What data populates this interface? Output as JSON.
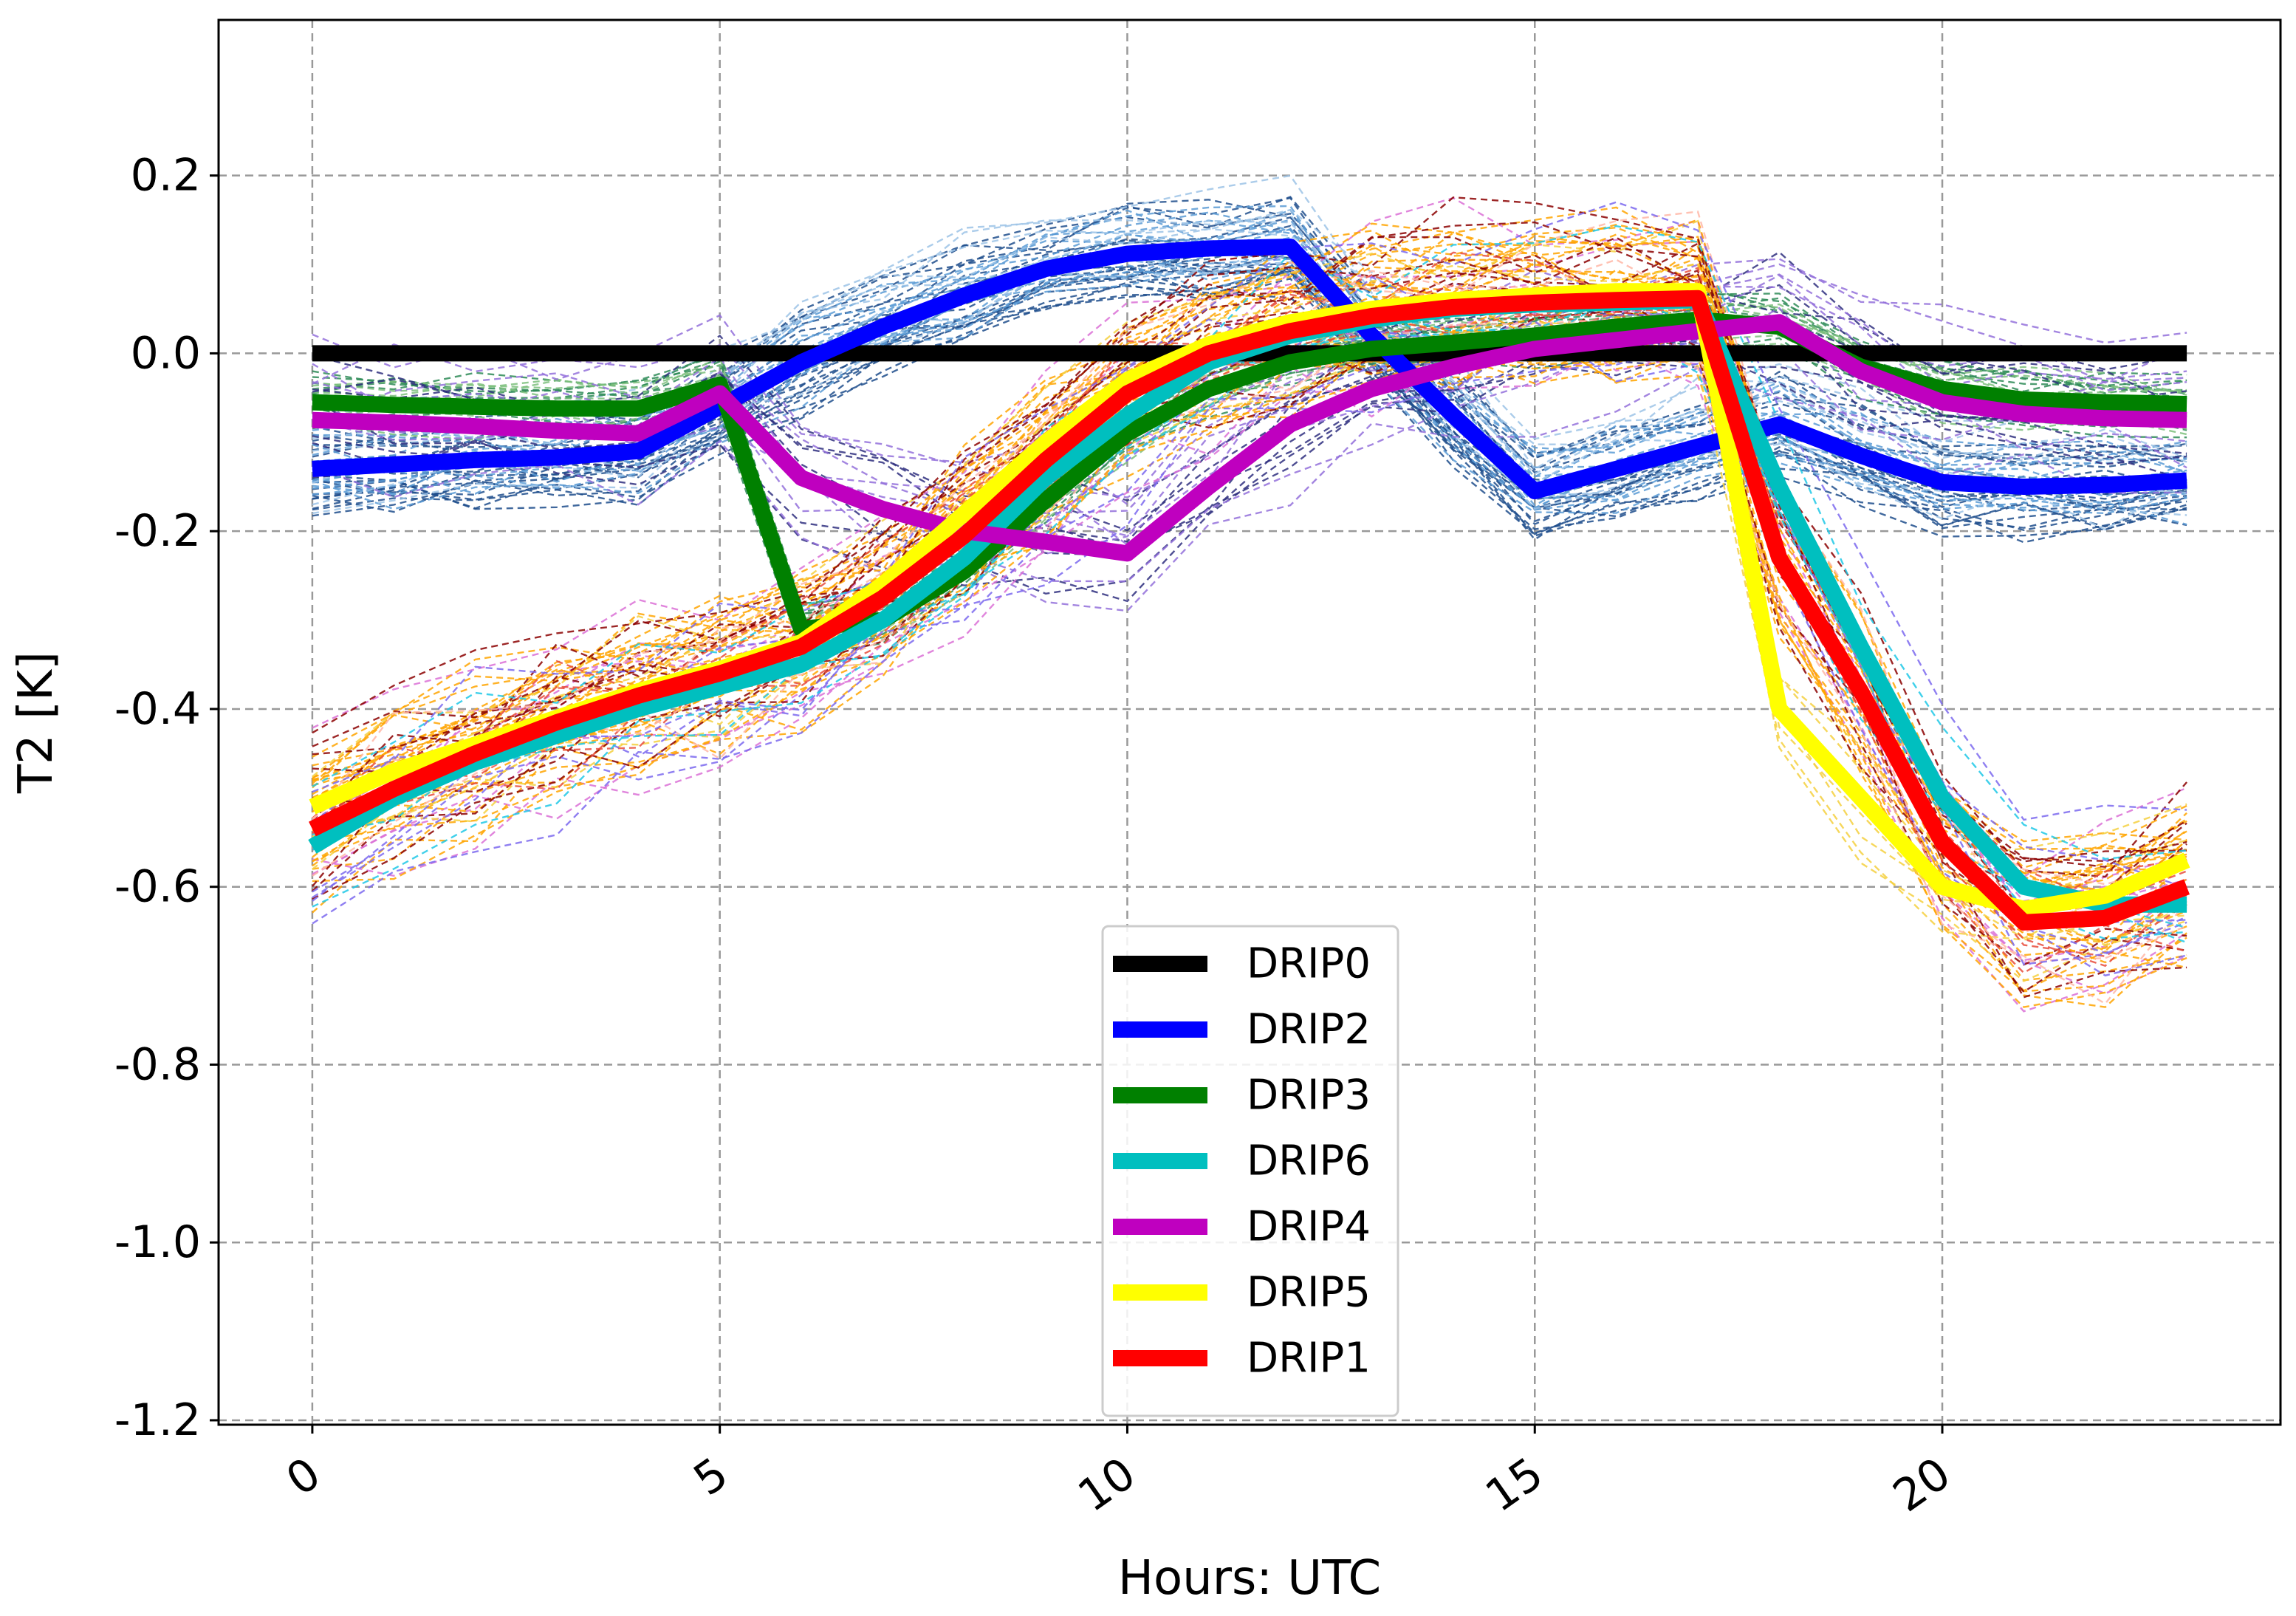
{
  "chart_data": {
    "type": "line",
    "title": "",
    "xlabel": "Hours: UTC",
    "ylabel": "T2 [K]",
    "xlim": [
      -1.15,
      24.15
    ],
    "ylim": [
      -1.205,
      0.375
    ],
    "xticks": [
      0,
      5,
      10,
      15,
      20
    ],
    "xtick_labels": [
      "0",
      "5",
      "10",
      "15",
      "20"
    ],
    "yticks": [
      0.2,
      0.0,
      -0.2,
      -0.4,
      -0.6,
      -0.8,
      -1.0,
      -1.2
    ],
    "ytick_labels": [
      "0.2",
      "0.0",
      "-0.2",
      "-0.4",
      "-0.6",
      "-0.8",
      "-1.0",
      "-1.2"
    ],
    "grid": true,
    "legend_position": "lower-center",
    "hours": [
      0,
      1,
      2,
      3,
      4,
      5,
      6,
      7,
      8,
      9,
      10,
      11,
      12,
      13,
      14,
      15,
      16,
      17,
      18,
      19,
      20,
      21,
      22,
      23
    ],
    "series": [
      {
        "name": "DRIP0",
        "color": "#000000",
        "values": [
          0.0,
          0.0,
          0.0,
          0.0,
          0.0,
          0.0,
          0.0,
          0.0,
          0.0,
          0.0,
          0.0,
          0.0,
          0.0,
          0.0,
          0.0,
          0.0,
          0.0,
          0.0,
          0.0,
          0.0,
          0.0,
          0.0,
          0.0,
          0.0
        ]
      },
      {
        "name": "DRIP2",
        "color": "#0000ff",
        "values": [
          -0.13,
          -0.125,
          -0.12,
          -0.117,
          -0.11,
          -0.06,
          -0.01,
          0.03,
          0.065,
          0.095,
          0.112,
          0.118,
          0.12,
          0.02,
          -0.07,
          -0.155,
          -0.13,
          -0.105,
          -0.08,
          -0.115,
          -0.145,
          -0.15,
          -0.148,
          -0.143
        ]
      },
      {
        "name": "DRIP3",
        "color": "#008000",
        "values": [
          -0.055,
          -0.058,
          -0.06,
          -0.062,
          -0.062,
          -0.035,
          -0.31,
          -0.3,
          -0.245,
          -0.165,
          -0.09,
          -0.04,
          -0.01,
          0.005,
          0.012,
          0.02,
          0.03,
          0.038,
          0.03,
          -0.015,
          -0.04,
          -0.052,
          -0.055,
          -0.057
        ]
      },
      {
        "name": "DRIP6",
        "color": "#00bfbf",
        "values": [
          -0.555,
          -0.5,
          -0.46,
          -0.43,
          -0.4,
          -0.375,
          -0.35,
          -0.3,
          -0.23,
          -0.14,
          -0.07,
          -0.01,
          0.02,
          0.038,
          0.05,
          0.055,
          0.057,
          0.06,
          -0.15,
          -0.33,
          -0.5,
          -0.6,
          -0.62,
          -0.62
        ]
      },
      {
        "name": "DRIP4",
        "color": "#bf00bf",
        "values": [
          -0.075,
          -0.078,
          -0.082,
          -0.087,
          -0.09,
          -0.045,
          -0.14,
          -0.175,
          -0.2,
          -0.212,
          -0.225,
          -0.15,
          -0.08,
          -0.04,
          -0.015,
          0.005,
          0.015,
          0.025,
          0.035,
          -0.02,
          -0.055,
          -0.068,
          -0.073,
          -0.075
        ]
      },
      {
        "name": "DRIP5",
        "color": "#ffff00",
        "values": [
          -0.51,
          -0.47,
          -0.44,
          -0.41,
          -0.38,
          -0.355,
          -0.325,
          -0.26,
          -0.18,
          -0.1,
          -0.03,
          0.01,
          0.035,
          0.05,
          0.06,
          0.065,
          0.07,
          0.07,
          -0.4,
          -0.5,
          -0.6,
          -0.625,
          -0.61,
          -0.57
        ]
      },
      {
        "name": "DRIP1",
        "color": "#ff0000",
        "values": [
          -0.535,
          -0.49,
          -0.45,
          -0.415,
          -0.385,
          -0.36,
          -0.33,
          -0.275,
          -0.205,
          -0.12,
          -0.045,
          0.0,
          0.025,
          0.042,
          0.052,
          0.057,
          0.06,
          0.062,
          -0.23,
          -0.38,
          -0.55,
          -0.64,
          -0.635,
          -0.6
        ]
      }
    ],
    "ensemble_families": [
      {
        "color": "#1f4e8c",
        "center": "DRIP2",
        "count": 22,
        "spread": 0.045
      },
      {
        "color": "#5a9bd5",
        "center": "DRIP2",
        "count": 14,
        "spread": 0.05
      },
      {
        "color": "#9cc3e6",
        "center": "DRIP2",
        "count": 8,
        "spread": 0.06
      },
      {
        "color": "#2e8b57",
        "center": "DRIP3",
        "count": 10,
        "spread": 0.03
      },
      {
        "color": "#7cbf7c",
        "center": "DRIP3",
        "count": 6,
        "spread": 0.035
      },
      {
        "color": "#2f2f7f",
        "center": "DRIP4",
        "count": 8,
        "spread": 0.06
      },
      {
        "color": "#9370db",
        "center": "DRIP4",
        "count": 8,
        "spread": 0.08
      },
      {
        "color": "#da70d6",
        "center": "DRIP1",
        "count": 7,
        "spread": 0.09
      },
      {
        "color": "#ffa500",
        "center": "DRIP1",
        "count": 26,
        "spread": 0.08
      },
      {
        "color": "#f4d03f",
        "center": "DRIP5",
        "count": 6,
        "spread": 0.07
      },
      {
        "color": "#8b0000",
        "center": "DRIP1",
        "count": 10,
        "spread": 0.09
      },
      {
        "color": "#e74c3c",
        "center": "DRIP1",
        "count": 6,
        "spread": 0.08
      },
      {
        "color": "#ffb6a6",
        "center": "DRIP1",
        "count": 4,
        "spread": 0.1
      },
      {
        "color": "#7b68ee",
        "center": "DRIP6",
        "count": 6,
        "spread": 0.09
      },
      {
        "color": "#1ec8e6",
        "center": "DRIP6",
        "count": 4,
        "spread": 0.08
      }
    ]
  }
}
